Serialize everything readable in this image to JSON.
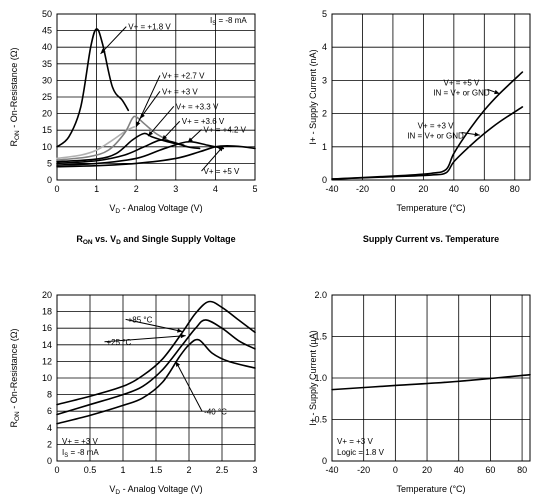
{
  "chart_data": [
    {
      "type": "line",
      "title": "R_ON vs. V_D and Single Supply Voltage",
      "title_main": "R",
      "title_sub": "ON",
      "title_rest": " vs. V",
      "title_sub2": "D",
      "title_tail": " and Single Supply Voltage",
      "xlabel_main": "V",
      "xlabel_sub": "D",
      "xlabel_rest": " - Analog Voltage (V)",
      "ylabel_main": "R",
      "ylabel_sub": "ON",
      "ylabel_rest": " - On-Resistance (Ω)",
      "xlim": [
        0,
        5
      ],
      "ylim": [
        0,
        50
      ],
      "xticks": [
        0,
        1,
        2,
        3,
        4,
        5
      ],
      "yticks": [
        0,
        5,
        10,
        15,
        20,
        25,
        30,
        35,
        40,
        45,
        50
      ],
      "grid": true,
      "series": [
        {
          "name": "V+ = +1.8 V",
          "color": "#000000",
          "points": [
            [
              0,
              10
            ],
            [
              0.3,
              13
            ],
            [
              0.6,
              22
            ],
            [
              0.85,
              40
            ],
            [
              1.0,
              45.5
            ],
            [
              1.15,
              41
            ],
            [
              1.4,
              28
            ],
            [
              1.65,
              24
            ],
            [
              1.8,
              21
            ]
          ]
        },
        {
          "name": "V+ = +2.7 V",
          "color": "#b0b0b0",
          "points": [
            [
              0,
              6.5
            ],
            [
              0.6,
              7.5
            ],
            [
              1.0,
              9
            ],
            [
              1.4,
              12
            ],
            [
              1.7,
              14.5
            ],
            [
              1.85,
              15.5
            ],
            [
              1.95,
              16
            ]
          ]
        },
        {
          "name": "V+ = +3 V",
          "color": "#808080",
          "points": [
            [
              0,
              6
            ],
            [
              0.8,
              7
            ],
            [
              1.3,
              9
            ],
            [
              1.7,
              14
            ],
            [
              1.9,
              18.5
            ],
            [
              2.0,
              19
            ],
            [
              2.2,
              17
            ],
            [
              2.5,
              14
            ],
            [
              2.8,
              12
            ]
          ]
        },
        {
          "name": "V+ = +3.3 V",
          "color": "#000000",
          "points": [
            [
              0,
              5.5
            ],
            [
              1,
              6.3
            ],
            [
              1.5,
              8
            ],
            [
              1.9,
              12
            ],
            [
              2.2,
              14
            ],
            [
              2.4,
              13
            ],
            [
              2.8,
              11.5
            ],
            [
              3.2,
              10.5
            ]
          ]
        },
        {
          "name": "V+ = +3.6 V",
          "color": "#000000",
          "points": [
            [
              0,
              5
            ],
            [
              1,
              5.8
            ],
            [
              1.7,
              7.5
            ],
            [
              2.2,
              10
            ],
            [
              2.6,
              12
            ],
            [
              2.9,
              11.5
            ],
            [
              3.3,
              10
            ],
            [
              3.6,
              9.5
            ]
          ]
        },
        {
          "name": "V+ = +4.2 V",
          "color": "#000000",
          "points": [
            [
              0,
              4.5
            ],
            [
              1,
              5
            ],
            [
              2,
              6.5
            ],
            [
              2.6,
              9
            ],
            [
              3.1,
              11
            ],
            [
              3.4,
              11.5
            ],
            [
              3.8,
              10.5
            ],
            [
              4.2,
              9.5
            ]
          ]
        },
        {
          "name": "V+ = +5 V",
          "color": "#000000",
          "points": [
            [
              0,
              4
            ],
            [
              1,
              4.3
            ],
            [
              2,
              5
            ],
            [
              3,
              6.5
            ],
            [
              3.6,
              8.5
            ],
            [
              4.0,
              10
            ],
            [
              4.3,
              10.3
            ],
            [
              4.7,
              10
            ],
            [
              5,
              9.5
            ]
          ]
        }
      ],
      "annotations": [
        {
          "text": "V+ = +1.8 V",
          "at": [
            1.8,
            45.3
          ]
        },
        {
          "text": "V+ = +2.7 V",
          "at": [
            2.65,
            30.6
          ]
        },
        {
          "text": "V+ = +3 V",
          "at": [
            2.65,
            25.8
          ]
        },
        {
          "text": "V+ = +3.3 V",
          "at": [
            3.0,
            21.3
          ]
        },
        {
          "text": "V+ = +3.6 V",
          "at": [
            3.15,
            16.8
          ]
        },
        {
          "text": "V+ = +4.2 V",
          "at": [
            3.7,
            14.3
          ]
        },
        {
          "text": "V+ = +5 V",
          "at": [
            3.7,
            1.8
          ]
        }
      ],
      "is_label": {
        "main": "I",
        "sub": "S",
        "rest": " = -8 mA"
      }
    },
    {
      "type": "line",
      "title": "Supply Current vs. Temperature",
      "xlabel": "Temperature (°C)",
      "ylabel": "I+ - Supply Current (nA)",
      "xlim": [
        -40,
        90
      ],
      "ylim": [
        0,
        5
      ],
      "xticks": [
        -40,
        -20,
        0,
        20,
        40,
        60,
        80
      ],
      "yticks": [
        0,
        1,
        2,
        3,
        4,
        5
      ],
      "grid": true,
      "series": [
        {
          "name": "V+ = +5 V, IN = V+ or GND",
          "color": "#000000",
          "points": [
            [
              -40,
              0.03
            ],
            [
              0,
              0.12
            ],
            [
              25,
              0.2
            ],
            [
              35,
              0.32
            ],
            [
              40,
              0.8
            ],
            [
              50,
              1.5
            ],
            [
              60,
              2.1
            ],
            [
              70,
              2.6
            ],
            [
              85,
              3.25
            ]
          ]
        },
        {
          "name": "V+ = +3 V, IN = V+ or GND",
          "color": "#000000",
          "points": [
            [
              -40,
              0.03
            ],
            [
              0,
              0.1
            ],
            [
              25,
              0.15
            ],
            [
              35,
              0.22
            ],
            [
              40,
              0.55
            ],
            [
              50,
              1.0
            ],
            [
              60,
              1.4
            ],
            [
              70,
              1.75
            ],
            [
              85,
              2.2
            ]
          ]
        }
      ],
      "annotations": [
        {
          "line1": "V+ = +5 V",
          "line2": "IN = V+ or GND",
          "at": [
            45,
            2.85
          ]
        },
        {
          "line1": "V+ = +3 V",
          "line2": "IN = V+ or GND",
          "at": [
            28,
            1.55
          ]
        }
      ]
    },
    {
      "type": "line",
      "title": "",
      "xlabel_main": "V",
      "xlabel_sub": "D",
      "xlabel_rest": " - Analog Voltage (V)",
      "ylabel_main": "R",
      "ylabel_sub": "ON",
      "ylabel_rest": " - On-Resistance (Ω)",
      "xlim": [
        0,
        3
      ],
      "ylim": [
        0,
        20
      ],
      "xticks": [
        0,
        0.5,
        1,
        1.5,
        2,
        2.5,
        3
      ],
      "ytick_labels": [
        "0",
        "2",
        "4",
        "6",
        "8",
        "10",
        "12",
        "14",
        "16",
        "18",
        "20"
      ],
      "yticks": [
        0,
        2,
        4,
        6,
        8,
        10,
        12,
        14,
        16,
        18,
        20
      ],
      "grid": true,
      "series": [
        {
          "name": "+85 °C",
          "color": "#000000",
          "points": [
            [
              0,
              6.8
            ],
            [
              0.5,
              7.8
            ],
            [
              1,
              9
            ],
            [
              1.3,
              10.3
            ],
            [
              1.6,
              12.3
            ],
            [
              1.9,
              15.5
            ],
            [
              2.1,
              17.8
            ],
            [
              2.3,
              19.2
            ],
            [
              2.5,
              18.5
            ],
            [
              2.75,
              17
            ],
            [
              3,
              15.5
            ]
          ]
        },
        {
          "name": "+25 °C",
          "color": "#000000",
          "points": [
            [
              0,
              5.6
            ],
            [
              0.5,
              6.8
            ],
            [
              1,
              8
            ],
            [
              1.3,
              9
            ],
            [
              1.6,
              11
            ],
            [
              1.9,
              14
            ],
            [
              2.1,
              16
            ],
            [
              2.25,
              17
            ],
            [
              2.5,
              16
            ],
            [
              2.75,
              14.5
            ],
            [
              3,
              13.5
            ]
          ]
        },
        {
          "name": "-40 °C",
          "color": "#000000",
          "points": [
            [
              0,
              4.5
            ],
            [
              0.5,
              5.5
            ],
            [
              1,
              6.7
            ],
            [
              1.3,
              7.6
            ],
            [
              1.6,
              9.5
            ],
            [
              1.85,
              12.5
            ],
            [
              2.0,
              14
            ],
            [
              2.15,
              14.6
            ],
            [
              2.35,
              13
            ],
            [
              2.6,
              12
            ],
            [
              3,
              11.2
            ]
          ]
        }
      ],
      "annotations": [
        {
          "text": "+85 °C",
          "at": [
            1.07,
            16.7
          ]
        },
        {
          "text": "+25 °C",
          "at": [
            0.75,
            14.0
          ]
        },
        {
          "text": "-40 °C",
          "at": [
            2.23,
            5.6
          ]
        }
      ],
      "cond_line1": "V+ = +3 V",
      "is_label": {
        "main": "I",
        "sub": "S",
        "rest": " = -8 mA"
      }
    },
    {
      "type": "line",
      "title": "",
      "xlabel": "Temperature (°C)",
      "ylabel": "I+ - Supply Current (µA)",
      "xlim": [
        -40,
        85
      ],
      "ylim": [
        0,
        2.0
      ],
      "xticks": [
        -40,
        -20,
        0,
        20,
        40,
        60,
        80
      ],
      "yticks": [
        0,
        0.5,
        1.0,
        1.5,
        2.0
      ],
      "ytick_labels": [
        "0",
        "0.5",
        "1.0",
        "1.5",
        "2.0"
      ],
      "grid": true,
      "series": [
        {
          "name": "V+ = +3 V, Logic = 1.8 V",
          "color": "#000000",
          "points": [
            [
              -40,
              0.86
            ],
            [
              0,
              0.91
            ],
            [
              40,
              0.96
            ],
            [
              85,
              1.04
            ]
          ]
        }
      ],
      "cond_line1": "V+ = +3 V",
      "cond_line2": "Logic = 1.8 V"
    }
  ]
}
